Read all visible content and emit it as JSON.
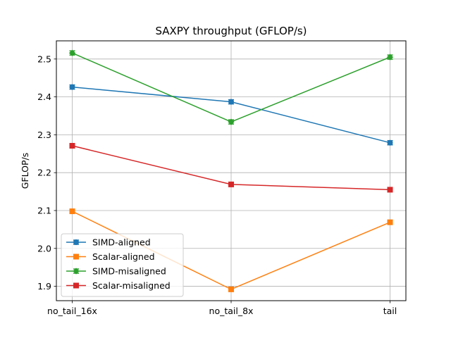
{
  "chart_data": {
    "type": "line",
    "title": "SAXPY throughput (GFLOP/s)",
    "xlabel": "",
    "ylabel": "GFLOP/s",
    "categories": [
      "no_tail_16x",
      "no_tail_8x",
      "tail"
    ],
    "ylim": [
      1.862,
      2.548
    ],
    "yticks": [
      1.9,
      2.0,
      2.1,
      2.2,
      2.3,
      2.4,
      2.5
    ],
    "ytick_labels": [
      "1.9",
      "2.0",
      "2.1",
      "2.2",
      "2.3",
      "2.4",
      "2.5"
    ],
    "grid": true,
    "legend_position": "lower-left",
    "error_bars": true,
    "series": [
      {
        "name": "SIMD-aligned",
        "values": [
          2.426,
          2.387,
          2.279
        ],
        "color": "#1f77b4",
        "marker": "circle"
      },
      {
        "name": "Scalar-aligned",
        "values": [
          2.098,
          1.892,
          2.069
        ],
        "color": "#ff7f0e",
        "marker": "square"
      },
      {
        "name": "SIMD-misaligned",
        "values": [
          2.516,
          2.334,
          2.505
        ],
        "color": "#2ca02c",
        "marker": "diamond"
      },
      {
        "name": "Scalar-misaligned",
        "values": [
          2.271,
          2.169,
          2.155
        ],
        "color": "#d62728",
        "marker": "square"
      }
    ]
  }
}
